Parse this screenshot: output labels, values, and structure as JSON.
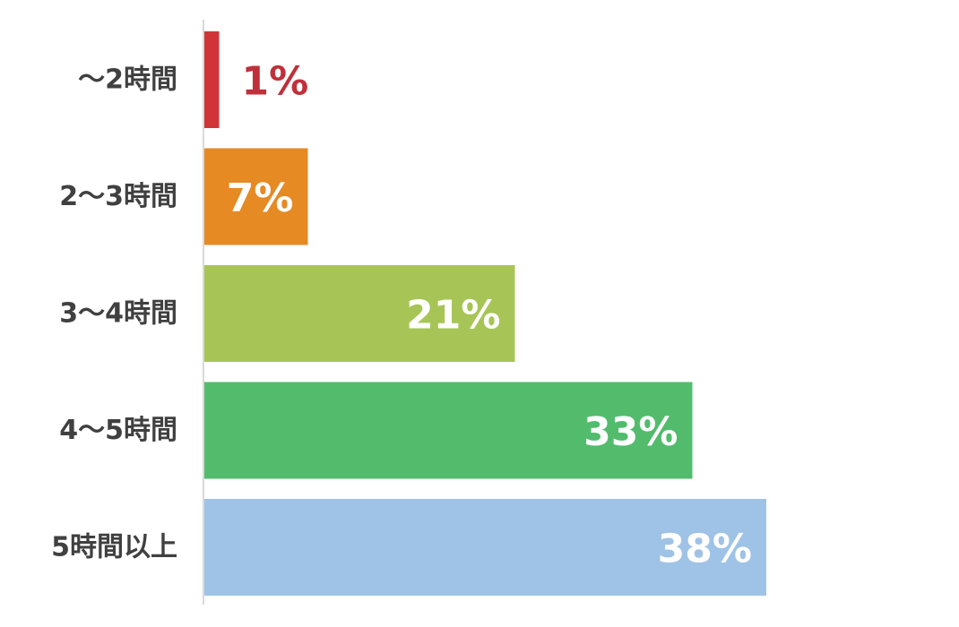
{
  "chart_data": {
    "type": "bar",
    "orientation": "horizontal",
    "categories": [
      "～2時間",
      "2～3時間",
      "3～4時間",
      "4～5時間",
      "5時間以上"
    ],
    "values": [
      1,
      7,
      21,
      33,
      38
    ],
    "data_labels": [
      "1%",
      "7%",
      "21%",
      "33%",
      "38%"
    ],
    "colors": [
      "#d13438",
      "#e68a24",
      "#a7c556",
      "#52bc6c",
      "#9fc3e6"
    ],
    "label_colors": [
      "#c0303a",
      "#ffffff",
      "#ffffff",
      "#ffffff",
      "#ffffff"
    ],
    "axis_color": "#d9d9d9",
    "category_label_color": "#404040",
    "unit": "%",
    "xlim": [
      0,
      40
    ],
    "grid": false,
    "legend": "none"
  }
}
